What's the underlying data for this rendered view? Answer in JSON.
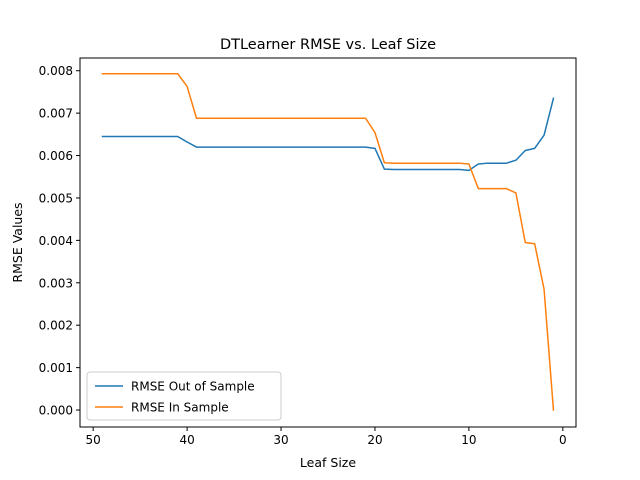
{
  "chart_data": {
    "type": "line",
    "title": "DTLearner RMSE vs. Leaf Size",
    "xlabel": "Leaf Size",
    "ylabel": "RMSE Values",
    "xlim": [
      51.4,
      -1.4
    ],
    "ylim": [
      -0.0004,
      0.0083
    ],
    "x_ticks": [
      50,
      40,
      30,
      20,
      10,
      0
    ],
    "x_tick_labels": [
      "50",
      "40",
      "30",
      "20",
      "10",
      "0"
    ],
    "y_ticks": [
      0.0,
      0.001,
      0.002,
      0.003,
      0.004,
      0.005,
      0.006,
      0.007,
      0.008
    ],
    "y_tick_labels": [
      "0.000",
      "0.001",
      "0.002",
      "0.003",
      "0.004",
      "0.005",
      "0.006",
      "0.007",
      "0.008"
    ],
    "x_axis_inverted": true,
    "grid": false,
    "legend_position": "lower-left",
    "x": [
      49,
      48,
      47,
      46,
      45,
      44,
      43,
      42,
      41,
      40,
      39,
      38,
      37,
      36,
      35,
      34,
      33,
      32,
      31,
      30,
      29,
      28,
      27,
      26,
      25,
      24,
      23,
      22,
      21,
      20,
      19,
      18,
      17,
      16,
      15,
      14,
      13,
      12,
      11,
      10,
      9,
      8,
      7,
      6,
      5,
      4,
      3,
      2,
      1
    ],
    "series": [
      {
        "name": "RMSE Out of Sample",
        "color": "#1f77b4",
        "values": [
          0.00645,
          0.00645,
          0.00645,
          0.00645,
          0.00645,
          0.00645,
          0.00645,
          0.00645,
          0.00645,
          0.00632,
          0.0062,
          0.0062,
          0.0062,
          0.0062,
          0.0062,
          0.0062,
          0.0062,
          0.0062,
          0.0062,
          0.0062,
          0.0062,
          0.0062,
          0.0062,
          0.0062,
          0.0062,
          0.0062,
          0.0062,
          0.0062,
          0.0062,
          0.00617,
          0.00568,
          0.00567,
          0.00567,
          0.00567,
          0.00567,
          0.00567,
          0.00567,
          0.00567,
          0.00567,
          0.00565,
          0.0058,
          0.00582,
          0.00582,
          0.00582,
          0.00589,
          0.00612,
          0.00617,
          0.00648,
          0.00735
        ]
      },
      {
        "name": "RMSE In Sample",
        "color": "#ff7f0e",
        "values": [
          0.00793,
          0.00793,
          0.00793,
          0.00793,
          0.00793,
          0.00793,
          0.00793,
          0.00793,
          0.00793,
          0.00763,
          0.00688,
          0.00688,
          0.00688,
          0.00688,
          0.00688,
          0.00688,
          0.00688,
          0.00688,
          0.00688,
          0.00688,
          0.00688,
          0.00688,
          0.00688,
          0.00688,
          0.00688,
          0.00688,
          0.00688,
          0.00688,
          0.00688,
          0.00654,
          0.00583,
          0.00582,
          0.00582,
          0.00582,
          0.00582,
          0.00582,
          0.00582,
          0.00582,
          0.00582,
          0.0058,
          0.00522,
          0.00522,
          0.00522,
          0.00522,
          0.00512,
          0.00395,
          0.00392,
          0.00285,
          0.0
        ]
      }
    ]
  }
}
